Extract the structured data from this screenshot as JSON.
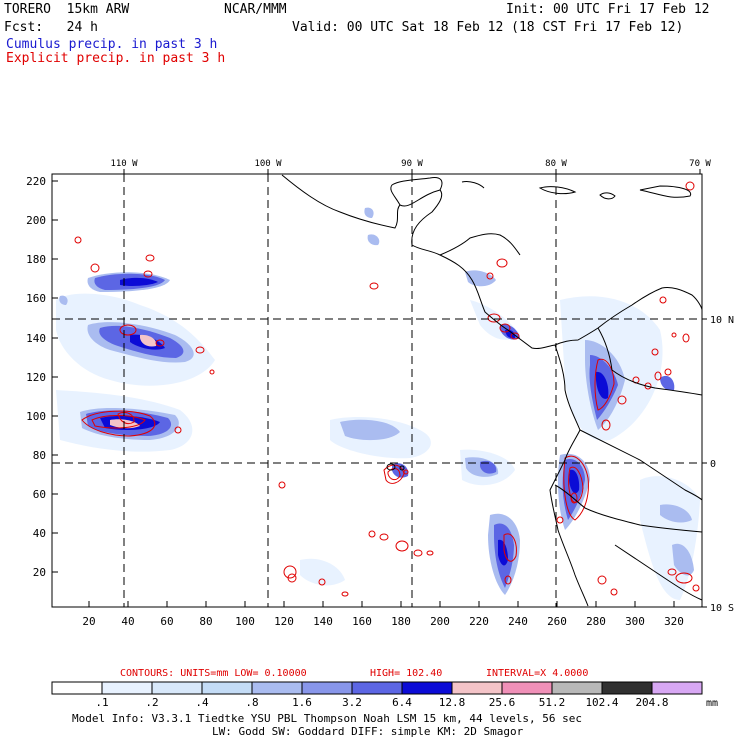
{
  "header": {
    "model": "TORERO  15km ARW",
    "org": "NCAR/MMM",
    "init": "Init: 00 UTC Fri 17 Feb 12",
    "fcst": "Fcst:   24 h",
    "valid": "Valid: 00 UTC Sat 18 Feb 12 (18 CST Fri 17 Feb 12)",
    "field1": "Cumulus precip. in past 3 h",
    "field2": "Explicit precip. in past 3 h"
  },
  "map": {
    "lon_labels": [
      "110 W",
      "100 W",
      "90 W",
      "80 W",
      "70 W"
    ],
    "lat_labels": [
      "10 N",
      "0",
      "10 S"
    ],
    "y_ticks": [
      "220",
      "200",
      "180",
      "160",
      "140",
      "120",
      "100",
      "80",
      "60",
      "40",
      "20"
    ],
    "x_ticks": [
      "20",
      "40",
      "60",
      "80",
      "100",
      "120",
      "140",
      "160",
      "180",
      "200",
      "220",
      "240",
      "260",
      "280",
      "300",
      "320"
    ]
  },
  "contour_info": {
    "label": "CONTOURS:  UNITS=mm  LOW= 0.10000",
    "high": "HIGH=  102.40",
    "interval": "INTERVAL=X  4.0000"
  },
  "colorbar": {
    "unit": "mm",
    "labels": [
      ".1",
      ".2",
      ".4",
      ".8",
      "1.6",
      "3.2",
      "6.4",
      "12.8",
      "25.6",
      "51.2",
      "102.4",
      "204.8"
    ],
    "colors": [
      "#ffffff",
      "#e8f2ff",
      "#d8e8fa",
      "#c4dcf6",
      "#aabcf0",
      "#8896ea",
      "#5c66e4",
      "#0b0bd6",
      "#f4c4c8",
      "#f090b8",
      "#b8b8b8",
      "#303030",
      "#d8a8f4"
    ]
  },
  "footer": {
    "line1": "Model Info: V3.3.1    Tiedtke YSU PBL  Thompson    Noah LSM  15 km,    44 levels,    56 sec",
    "line2": "LW: Godd SW: Goddard DIFF: simple KM: 2D Smagor"
  }
}
